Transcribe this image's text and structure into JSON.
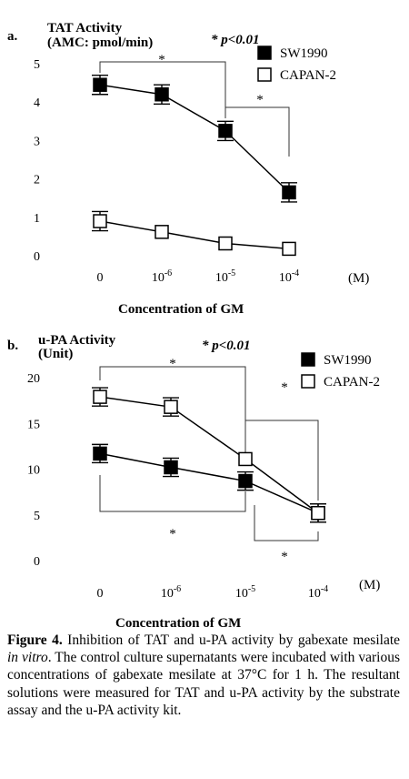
{
  "chart_data": [
    {
      "type": "line",
      "panel_label": "a.",
      "ylabel_line1": "TAT Activity",
      "ylabel_line2": "(AMC: pmol/min)",
      "significance_label": "* p<0.01",
      "xlabel": "Concentration of GM",
      "x_unit": "(M)",
      "categories": [
        {
          "base": "0",
          "exp": ""
        },
        {
          "base": "10",
          "exp": "-6"
        },
        {
          "base": "10",
          "exp": "-5"
        },
        {
          "base": "10",
          "exp": "-4"
        }
      ],
      "ylim": [
        0,
        5
      ],
      "yticks": [
        "0",
        "1",
        "2",
        "3",
        "4",
        "5"
      ],
      "series": [
        {
          "name": "SW1990",
          "marker": "filled-square",
          "values": [
            4.45,
            4.2,
            3.25,
            1.65
          ],
          "errors": [
            0.25,
            0.25,
            0.25,
            0.25
          ]
        },
        {
          "name": "CAPAN-2",
          "marker": "open-square",
          "values": [
            0.9,
            0.62,
            0.32,
            0.18
          ],
          "errors": [
            0.25,
            0.0,
            0.0,
            0.0
          ]
        }
      ],
      "significance_marks": [
        "*",
        "*"
      ]
    },
    {
      "type": "line",
      "panel_label": "b.",
      "ylabel_line1": "u-PA Activity",
      "ylabel_line2": "(Unit)",
      "significance_label": "* p<0.01",
      "xlabel": "Concentration of GM",
      "x_unit": "(M)",
      "categories": [
        {
          "base": "0",
          "exp": ""
        },
        {
          "base": "10",
          "exp": "-6"
        },
        {
          "base": "10",
          "exp": "-5"
        },
        {
          "base": "10",
          "exp": "-4"
        }
      ],
      "ylim": [
        0,
        20
      ],
      "yticks": [
        "0",
        "5",
        "10",
        "15",
        "20"
      ],
      "series": [
        {
          "name": "SW1990",
          "marker": "filled-square",
          "values": [
            11.7,
            10.2,
            8.7,
            5.2
          ],
          "errors": [
            1.0,
            1.0,
            1.0,
            1.0
          ]
        },
        {
          "name": "CAPAN-2",
          "marker": "open-square",
          "values": [
            17.9,
            16.8,
            11.1,
            5.2
          ],
          "errors": [
            1.0,
            1.0,
            0.0,
            1.0
          ]
        }
      ],
      "significance_marks": [
        "*",
        "*",
        "*",
        "*"
      ]
    }
  ],
  "caption": {
    "label": "Figure 4.",
    "text_1": " Inhibition of TAT and u-PA activity by gabexate mesilate ",
    "italic": "in vitro",
    "text_2": ". The control culture supernatants were incubated with various concentrations of gabexate mesilate at 37°C for 1 h. The resultant solutions were measured for TAT and u-PA activity by the substrate assay and the u-PA activity kit."
  }
}
